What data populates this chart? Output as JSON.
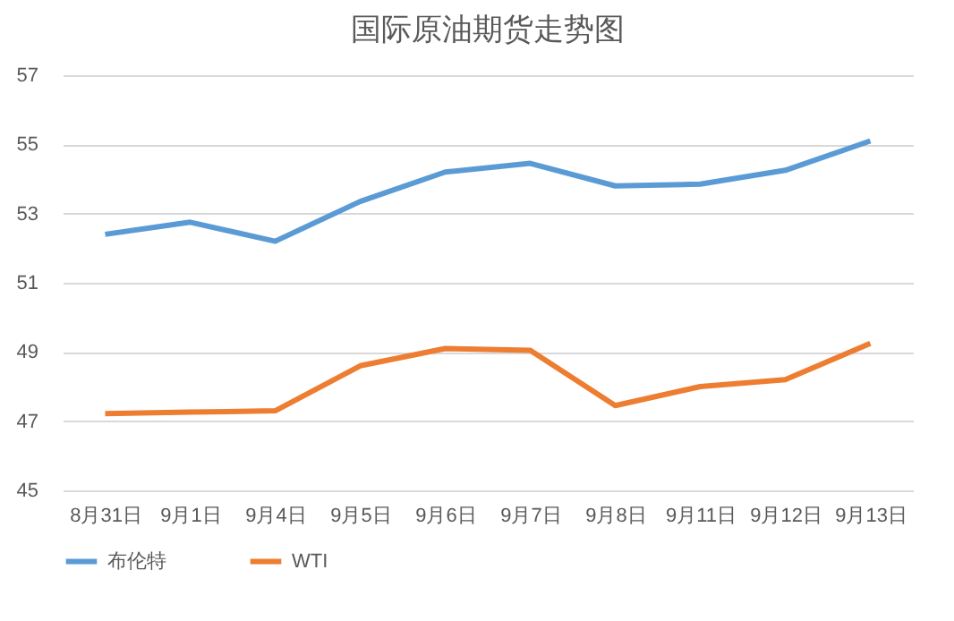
{
  "chart_data": {
    "type": "line",
    "title": "国际原油期货走势图",
    "categories": [
      "8月31日",
      "9月1日",
      "9月4日",
      "9月5日",
      "9月6日",
      "9月7日",
      "9月8日",
      "9月11日",
      "9月12日",
      "9月13日"
    ],
    "series": [
      {
        "name": "布伦特",
        "color": "#5b9bd5",
        "values": [
          52.4,
          52.75,
          52.2,
          53.35,
          54.2,
          54.45,
          53.8,
          53.85,
          54.25,
          55.1
        ]
      },
      {
        "name": "WTI",
        "color": "#ed7d31",
        "values": [
          47.22,
          47.26,
          47.3,
          48.6,
          49.1,
          49.05,
          47.45,
          48.0,
          48.2,
          49.25
        ]
      }
    ],
    "ylim": [
      45,
      57
    ],
    "yticks": [
      45,
      47,
      49,
      51,
      53,
      55,
      57
    ],
    "grid": "y",
    "legend": "bottom",
    "marker": "none",
    "line_style": "solid"
  }
}
